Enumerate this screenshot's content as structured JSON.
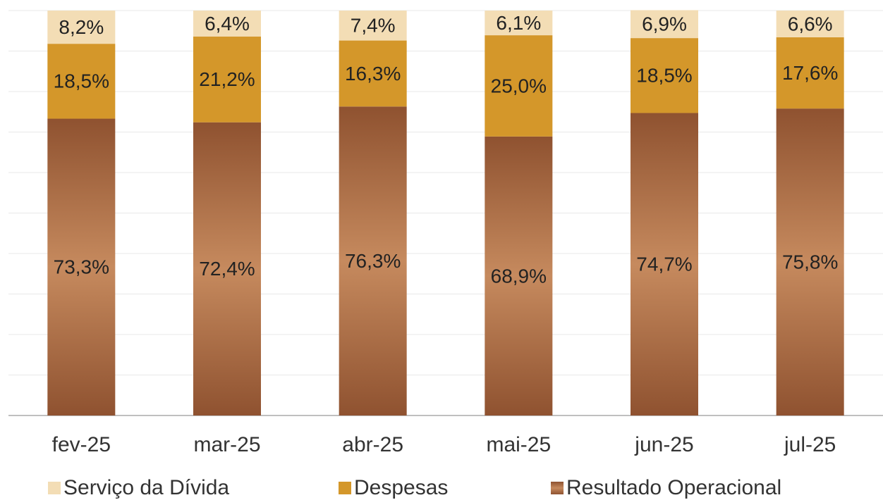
{
  "chart_data": {
    "type": "stacked_bar",
    "categories": [
      "fev-25",
      "mar-25",
      "abr-25",
      "mai-25",
      "jun-25",
      "jul-25"
    ],
    "series": [
      {
        "name": "Resultado Operacional",
        "color": "#c68a5e",
        "values": [
          73.3,
          72.4,
          76.3,
          68.9,
          74.7,
          75.8
        ],
        "value_labels": [
          "73,3%",
          "72,4%",
          "76,3%",
          "68,9%",
          "74,7%",
          "75,8%"
        ]
      },
      {
        "name": "Despesas",
        "color": "#d4972a",
        "values": [
          18.5,
          21.2,
          16.3,
          25.0,
          18.5,
          17.6
        ],
        "value_labels": [
          "18,5%",
          "21,2%",
          "16,3%",
          "25,0%",
          "18,5%",
          "17,6%"
        ]
      },
      {
        "name": "Serviço da Dívida",
        "color": "#f3ddb5",
        "values": [
          8.2,
          6.4,
          7.4,
          6.1,
          6.9,
          6.6
        ],
        "value_labels": [
          "8,2%",
          "6,4%",
          "7,4%",
          "6,1%",
          "6,9%",
          "6,6%"
        ]
      }
    ],
    "ylim": [
      0,
      100
    ],
    "yticks": [
      0,
      10,
      20,
      30,
      40,
      50,
      60,
      70,
      80,
      90,
      100
    ],
    "grid": true,
    "legend": "bottom"
  }
}
